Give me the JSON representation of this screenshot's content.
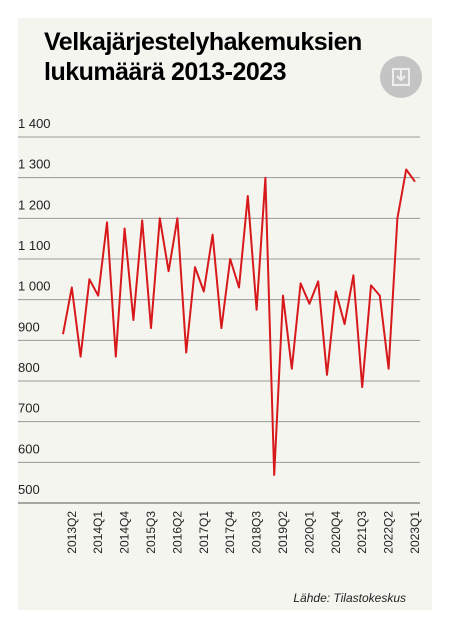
{
  "chart_data": {
    "type": "line",
    "title": [
      "Velkajärjestelyhakemuksien",
      "lukumäärä 2013-2023"
    ],
    "source": "Lähde: Tilastokeskus",
    "categories": [
      null,
      "2013Q2",
      null,
      null,
      "2014Q1",
      null,
      null,
      "2014Q4",
      null,
      null,
      "2015Q3",
      null,
      null,
      "2016Q2",
      null,
      null,
      "2017Q1",
      null,
      null,
      "2017Q4",
      null,
      null,
      "2018Q3",
      null,
      null,
      "2019Q2",
      null,
      null,
      "2020Q1",
      null,
      null,
      "2020Q4",
      null,
      null,
      "2021Q3",
      null,
      null,
      "2022Q2",
      null,
      null,
      "2023Q1"
    ],
    "values": [
      915,
      1030,
      860,
      1050,
      1010,
      1190,
      860,
      1175,
      950,
      1195,
      930,
      1200,
      1070,
      1200,
      870,
      1080,
      1020,
      1160,
      930,
      1100,
      1030,
      1255,
      975,
      1300,
      569,
      1010,
      830,
      1040,
      990,
      1045,
      815,
      1020,
      940,
      1060,
      785,
      1035,
      1010,
      830,
      1200,
      1320,
      1290
    ],
    "color": "#d7191c",
    "ylim": [
      500,
      1400
    ],
    "yticks": [
      500,
      600,
      700,
      800,
      900,
      {
        "value": 1000,
        "label": "1 000"
      },
      {
        "value": 1100,
        "label": "1 100"
      },
      {
        "value": 1200,
        "label": "1 200"
      },
      {
        "value": 1300,
        "label": "1 300"
      },
      {
        "value": 1400,
        "label": "1 400"
      }
    ],
    "grid": true
  }
}
